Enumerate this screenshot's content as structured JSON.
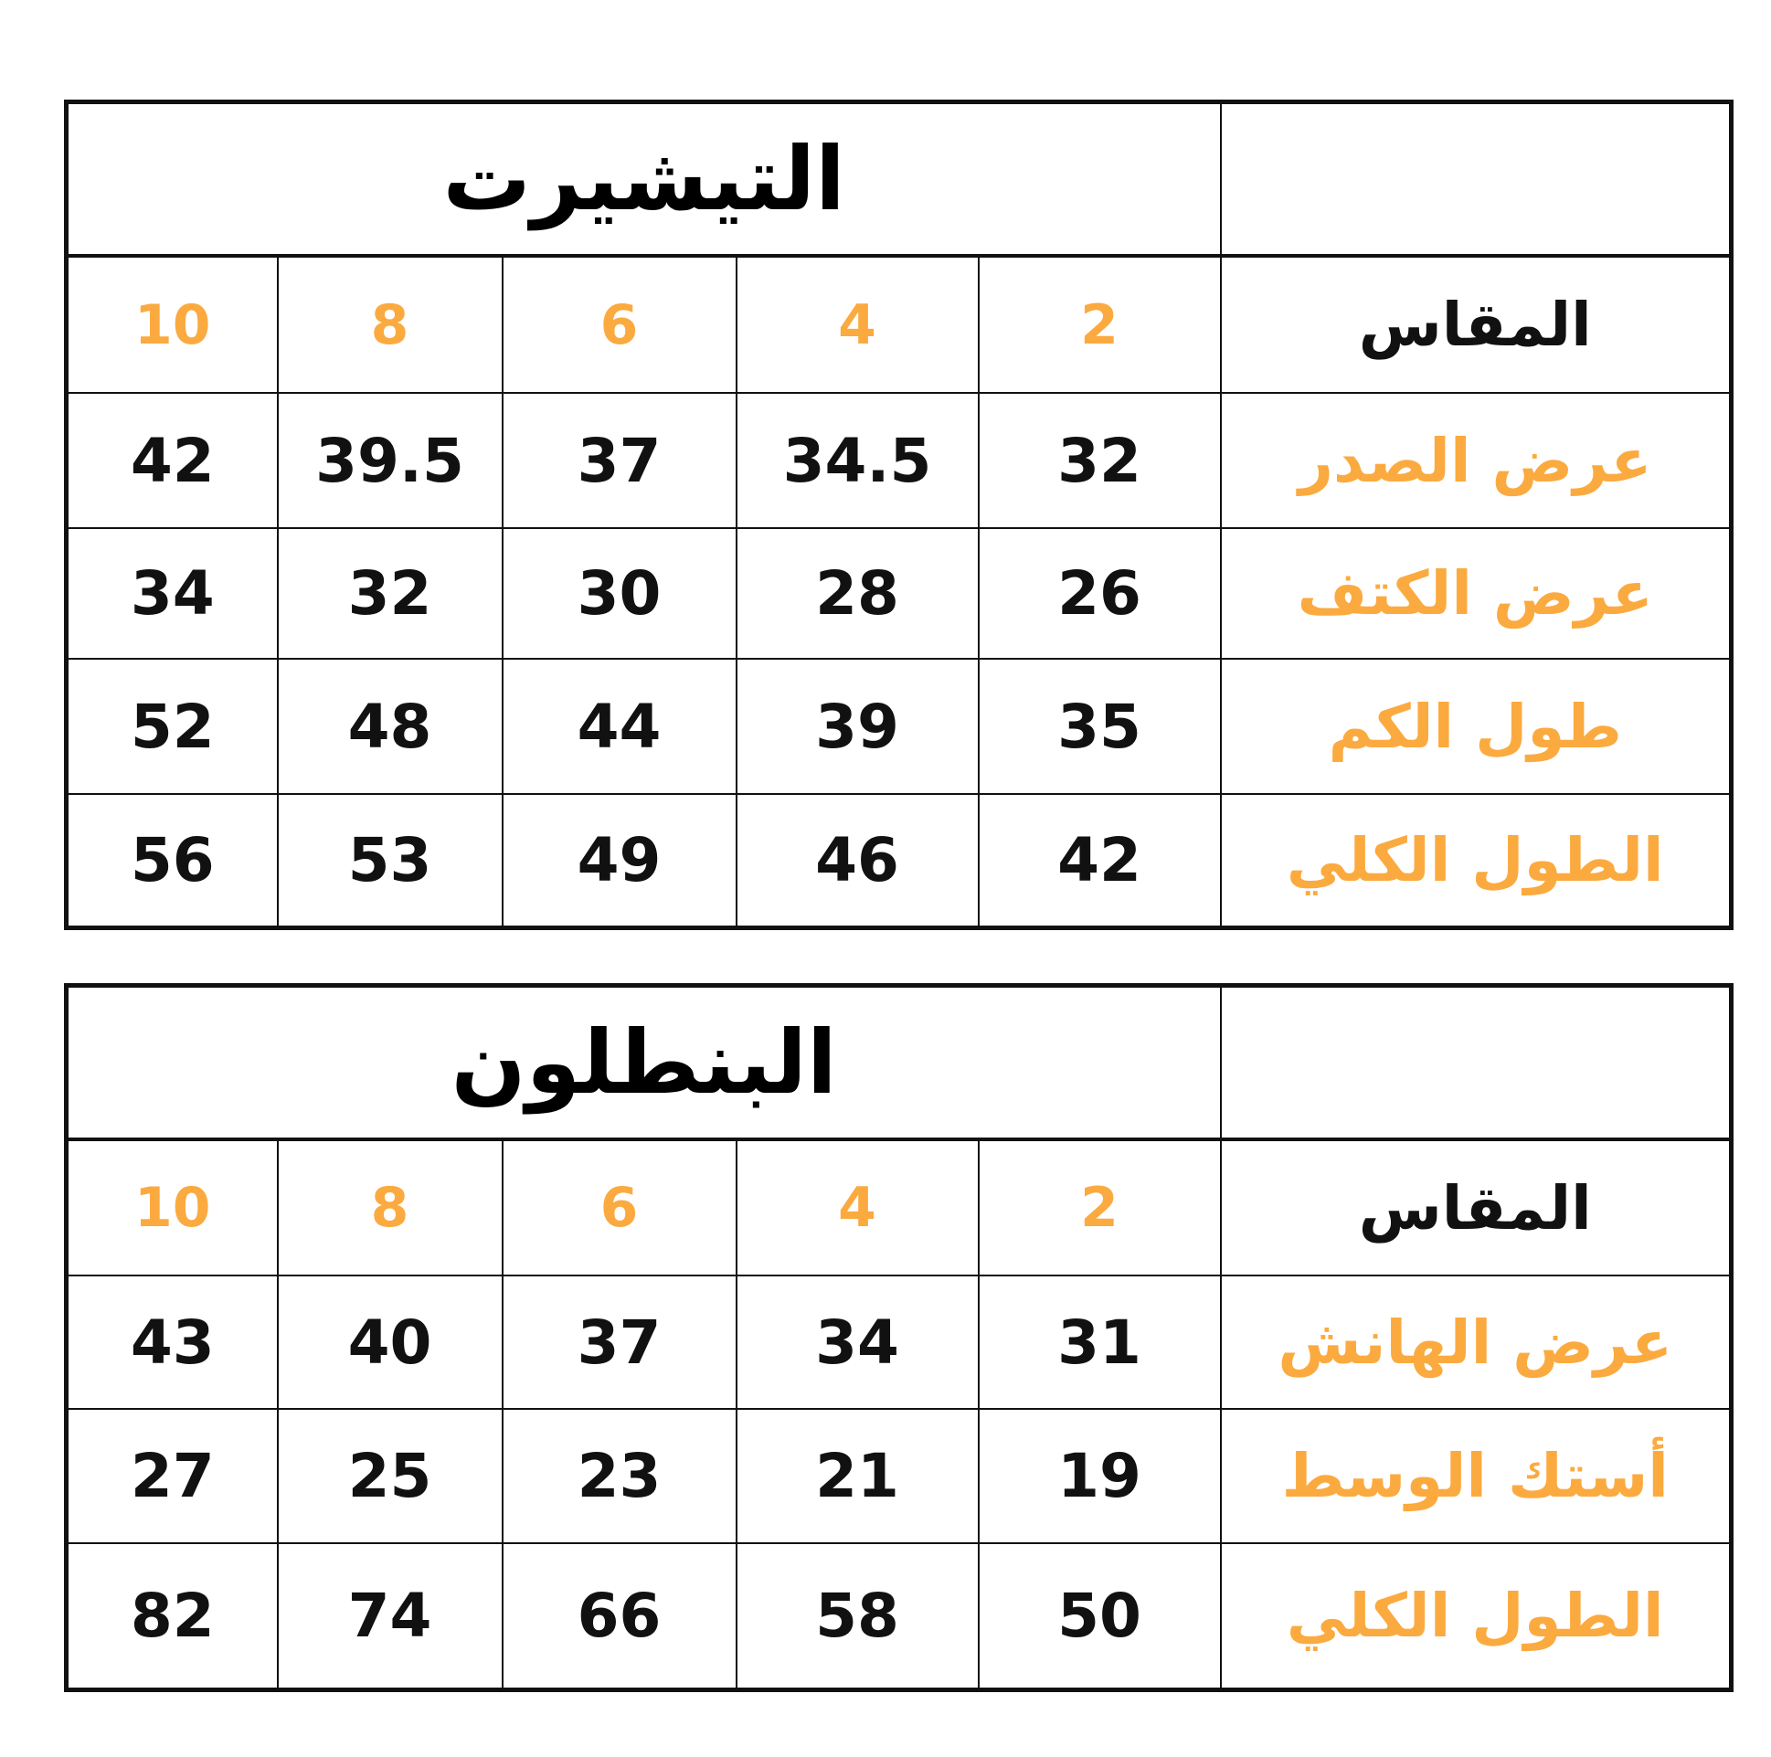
{
  "accent_color": "#FBAA40",
  "tables": [
    {
      "title": "التيشيرت",
      "size_label": "المقاس",
      "sizes": [
        "10",
        "8",
        "6",
        "4",
        "2"
      ],
      "rows": [
        {
          "label": "عرض الصدر",
          "values": [
            "42",
            "39.5",
            "37",
            "34.5",
            "32"
          ]
        },
        {
          "label": "عرض الكتف",
          "values": [
            "34",
            "32",
            "30",
            "28",
            "26"
          ]
        },
        {
          "label": "طول الكم",
          "values": [
            "52",
            "48",
            "44",
            "39",
            "35"
          ]
        },
        {
          "label": "الطول الكلي",
          "values": [
            "56",
            "53",
            "49",
            "46",
            "42"
          ]
        }
      ]
    },
    {
      "title": "البنطلون",
      "size_label": "المقاس",
      "sizes": [
        "10",
        "8",
        "6",
        "4",
        "2"
      ],
      "rows": [
        {
          "label": "عرض الهانش",
          "values": [
            "43",
            "40",
            "37",
            "34",
            "31"
          ]
        },
        {
          "label": "أستك الوسط",
          "values": [
            "27",
            "25",
            "23",
            "21",
            "19"
          ]
        },
        {
          "label": "الطول الكلي",
          "values": [
            "82",
            "74",
            "66",
            "58",
            "50"
          ]
        }
      ]
    }
  ]
}
